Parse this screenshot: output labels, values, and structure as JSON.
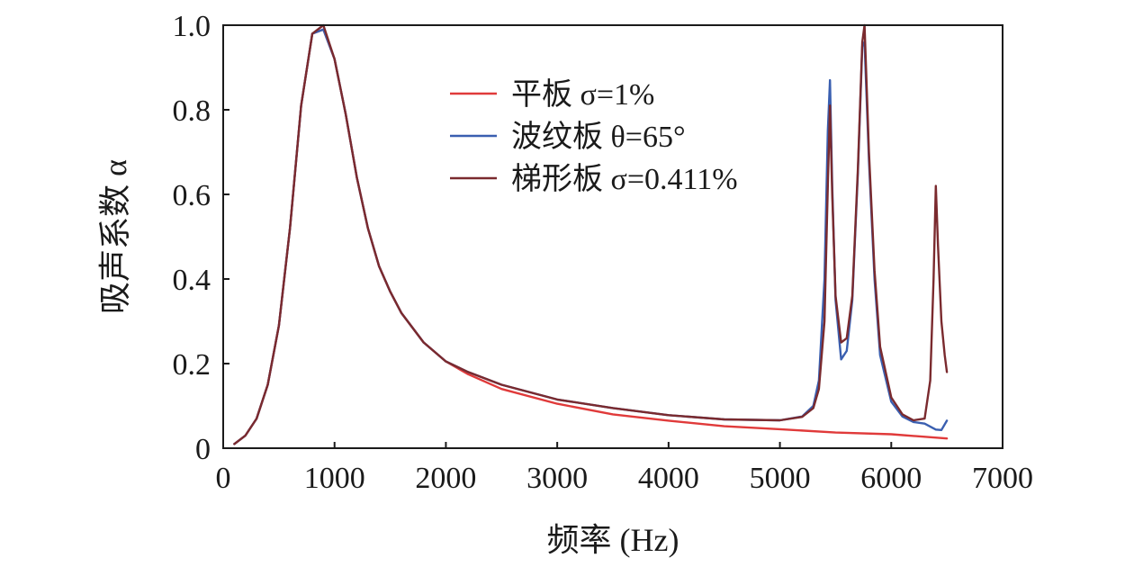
{
  "chart_data": {
    "type": "line",
    "xlabel": "频率 (Hz)",
    "ylabel": "吸声系数 α",
    "xlim": [
      0,
      7000
    ],
    "ylim": [
      0,
      1.0
    ],
    "xticks": [
      "0",
      "1000",
      "2000",
      "3000",
      "4000",
      "5000",
      "6000",
      "7000"
    ],
    "yticks": [
      "0",
      "0.2",
      "0.4",
      "0.6",
      "0.8",
      "1.0"
    ],
    "grid": false,
    "legend_position": "top-center",
    "series": [
      {
        "name": "平板 σ=1%",
        "color": "#e03a3a",
        "x": [
          100,
          200,
          300,
          400,
          500,
          600,
          700,
          800,
          900,
          1000,
          1100,
          1200,
          1300,
          1400,
          1500,
          1600,
          1800,
          2000,
          2200,
          2500,
          3000,
          3500,
          4000,
          4500,
          5000,
          5500,
          6000,
          6500
        ],
        "y": [
          0.01,
          0.03,
          0.07,
          0.15,
          0.29,
          0.52,
          0.81,
          0.98,
          0.99,
          0.92,
          0.79,
          0.64,
          0.52,
          0.43,
          0.37,
          0.32,
          0.25,
          0.205,
          0.175,
          0.14,
          0.105,
          0.08,
          0.065,
          0.052,
          0.045,
          0.037,
          0.033,
          0.023
        ]
      },
      {
        "name": "波纹板 θ=65°",
        "color": "#3a5fb0",
        "x": [
          100,
          200,
          300,
          400,
          500,
          600,
          700,
          800,
          900,
          1000,
          1100,
          1200,
          1300,
          1400,
          1500,
          1600,
          1800,
          2000,
          2200,
          2500,
          3000,
          3500,
          4000,
          4500,
          5000,
          5200,
          5300,
          5350,
          5400,
          5430,
          5450,
          5470,
          5500,
          5550,
          5600,
          5650,
          5700,
          5740,
          5760,
          5800,
          5850,
          5900,
          6000,
          6100,
          6200,
          6300,
          6400,
          6450,
          6500
        ],
        "y": [
          0.01,
          0.03,
          0.07,
          0.15,
          0.29,
          0.52,
          0.81,
          0.98,
          0.99,
          0.92,
          0.79,
          0.64,
          0.52,
          0.43,
          0.37,
          0.32,
          0.25,
          0.205,
          0.18,
          0.15,
          0.115,
          0.095,
          0.078,
          0.068,
          0.066,
          0.075,
          0.1,
          0.16,
          0.4,
          0.75,
          0.87,
          0.62,
          0.35,
          0.21,
          0.23,
          0.35,
          0.65,
          0.95,
          0.96,
          0.68,
          0.4,
          0.22,
          0.11,
          0.075,
          0.062,
          0.058,
          0.044,
          0.043,
          0.065
        ]
      },
      {
        "name": "梯形板 σ=0.411%",
        "color": "#7a2a2e",
        "x": [
          100,
          200,
          300,
          400,
          500,
          600,
          700,
          800,
          900,
          1000,
          1100,
          1200,
          1300,
          1400,
          1500,
          1600,
          1800,
          2000,
          2200,
          2500,
          3000,
          3500,
          4000,
          4500,
          5000,
          5200,
          5300,
          5350,
          5400,
          5430,
          5450,
          5470,
          5500,
          5550,
          5600,
          5650,
          5700,
          5740,
          5760,
          5800,
          5850,
          5900,
          6000,
          6100,
          6200,
          6300,
          6350,
          6380,
          6400,
          6420,
          6450,
          6480,
          6500
        ],
        "y": [
          0.01,
          0.03,
          0.07,
          0.15,
          0.29,
          0.52,
          0.81,
          0.98,
          1.0,
          0.92,
          0.79,
          0.64,
          0.52,
          0.43,
          0.37,
          0.32,
          0.25,
          0.205,
          0.18,
          0.15,
          0.115,
          0.095,
          0.078,
          0.068,
          0.066,
          0.074,
          0.095,
          0.14,
          0.3,
          0.62,
          0.81,
          0.6,
          0.36,
          0.25,
          0.26,
          0.36,
          0.66,
          0.96,
          1.0,
          0.7,
          0.42,
          0.24,
          0.12,
          0.08,
          0.066,
          0.07,
          0.16,
          0.4,
          0.62,
          0.48,
          0.3,
          0.22,
          0.18
        ]
      }
    ]
  }
}
